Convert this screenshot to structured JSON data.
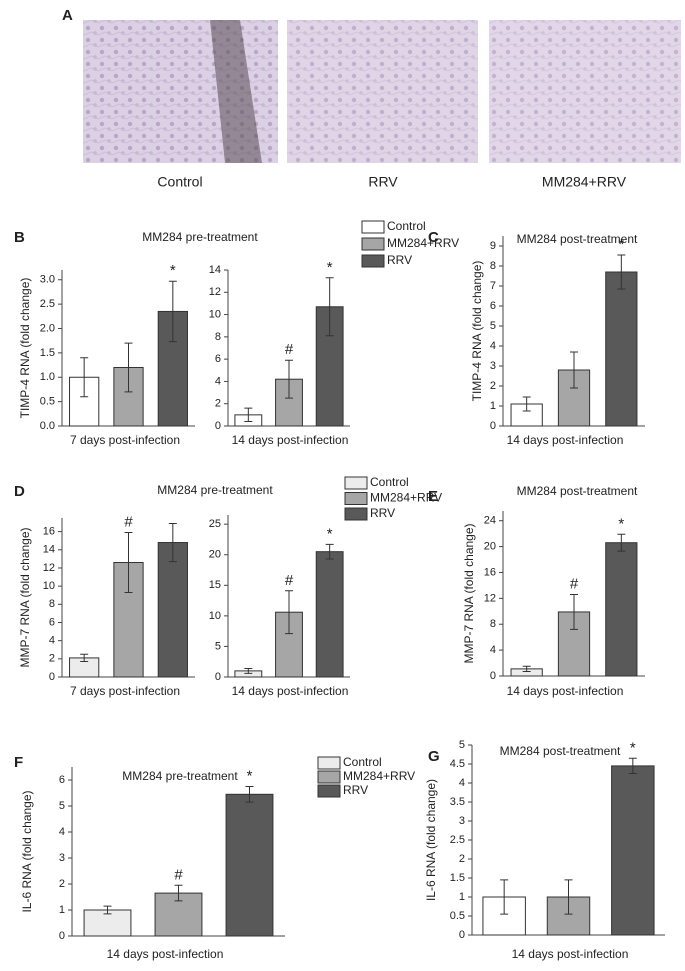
{
  "figure_a": {
    "panel": "A",
    "captions": [
      "Control",
      "RRV",
      "MM284+RRV"
    ]
  },
  "chart_data": [
    {
      "type": "bar",
      "panel": "B",
      "title": "MM284  pre-treatment",
      "ylabel": "TIMP-4 RNA (fold change)",
      "xlabel": "7 days post-infection",
      "ylim": [
        0,
        3.2
      ],
      "yticks": [
        {
          "value": 0,
          "label": "0.0"
        },
        0.5,
        {
          "value": 1,
          "label": "1.0"
        },
        1.5,
        {
          "value": 2,
          "label": "2.0"
        },
        2.5,
        {
          "value": 3,
          "label": "3.0"
        }
      ],
      "series": [
        {
          "color": "#ffffff",
          "values": [
            1.0
          ],
          "errors": [
            0.4
          ]
        },
        {
          "color": "#a6a6a6",
          "values": [
            1.2
          ],
          "errors": [
            0.5
          ]
        },
        {
          "color": "#595959",
          "values": [
            2.35
          ],
          "errors": [
            0.62
          ],
          "annotation": "*"
        }
      ]
    },
    {
      "type": "bar",
      "xlabel": "14 days post-infection",
      "ylim": [
        0,
        14
      ],
      "yticks": [
        0,
        2,
        4,
        6,
        8,
        10,
        12,
        14
      ],
      "legend": true,
      "series": [
        {
          "name": "Control",
          "color": "#ffffff",
          "values": [
            1.0
          ],
          "errors": [
            0.6
          ]
        },
        {
          "name": "MM284+RRV",
          "color": "#a6a6a6",
          "values": [
            4.2
          ],
          "errors": [
            1.7
          ],
          "annotation": "#"
        },
        {
          "name": "RRV",
          "color": "#595959",
          "values": [
            10.7
          ],
          "errors": [
            2.6
          ],
          "annotation": "*"
        }
      ]
    },
    {
      "type": "bar",
      "panel": "C",
      "title": "MM284  post-treatment",
      "ylabel": "TIMP-4 RNA (fold change)",
      "xlabel": "14 days post-infection",
      "ylim": [
        0,
        9.5
      ],
      "yticks": [
        0,
        1,
        2,
        3,
        4,
        5,
        6,
        7,
        8,
        9
      ],
      "series": [
        {
          "color": "#ffffff",
          "values": [
            1.1
          ],
          "errors": [
            0.35
          ]
        },
        {
          "color": "#a6a6a6",
          "values": [
            2.8
          ],
          "errors": [
            0.9
          ]
        },
        {
          "color": "#595959",
          "values": [
            7.7
          ],
          "errors": [
            0.85
          ],
          "annotation": "*"
        }
      ]
    },
    {
      "type": "bar",
      "panel": "D",
      "title": "MM284  pre-treatment",
      "ylabel": "MMP-7 RNA (fold change)",
      "xlabel": "7 days post-infection",
      "ylim": [
        0,
        17.5
      ],
      "yticks": [
        0,
        2,
        4,
        6,
        8,
        10,
        12,
        14,
        16
      ],
      "series": [
        {
          "color": "#ececec",
          "values": [
            2.1
          ],
          "errors": [
            0.4
          ]
        },
        {
          "color": "#a6a6a6",
          "values": [
            12.6
          ],
          "errors": [
            3.3
          ],
          "annotation": "#"
        },
        {
          "color": "#595959",
          "values": [
            14.8
          ],
          "errors": [
            2.1
          ]
        }
      ]
    },
    {
      "type": "bar",
      "xlabel": "14 days post-infection",
      "ylim": [
        0,
        26.5
      ],
      "yticks": [
        0,
        5,
        10,
        15,
        20,
        25
      ],
      "legend": true,
      "series": [
        {
          "name": "Control",
          "color": "#ececec",
          "values": [
            1.0
          ],
          "errors": [
            0.4
          ]
        },
        {
          "name": "MM284+RRV",
          "color": "#a6a6a6",
          "values": [
            10.6
          ],
          "errors": [
            3.5
          ],
          "annotation": "#"
        },
        {
          "name": "RRV",
          "color": "#595959",
          "values": [
            20.5
          ],
          "errors": [
            1.2
          ],
          "annotation": "*"
        }
      ]
    },
    {
      "type": "bar",
      "panel": "E",
      "title": "MM284  post-treatment",
      "ylabel": "MMP-7 RNA (fold change)",
      "xlabel": "14 days post-infection",
      "ylim": [
        0,
        25.5
      ],
      "yticks": [
        0,
        4,
        8,
        12,
        16,
        20,
        24
      ],
      "series": [
        {
          "color": "#ececec",
          "values": [
            1.1
          ],
          "errors": [
            0.4
          ]
        },
        {
          "color": "#a6a6a6",
          "values": [
            9.9
          ],
          "errors": [
            2.7
          ],
          "annotation": "#"
        },
        {
          "color": "#595959",
          "values": [
            20.6
          ],
          "errors": [
            1.3
          ],
          "annotation": "*"
        }
      ]
    },
    {
      "type": "bar",
      "panel": "F",
      "title": "MM284  pre-treatment",
      "ylabel": "IL-6 RNA (fold change)",
      "xlabel": "14 days post-infection",
      "ylim": [
        0,
        6.5
      ],
      "yticks": [
        0,
        1,
        2,
        3,
        4,
        5,
        6
      ],
      "legend": true,
      "series": [
        {
          "name": "Control",
          "color": "#ececec",
          "values": [
            1.0
          ],
          "errors": [
            0.15
          ]
        },
        {
          "name": "MM284+RRV",
          "color": "#a6a6a6",
          "values": [
            1.65
          ],
          "errors": [
            0.3
          ],
          "annotation": "#"
        },
        {
          "name": "RRV",
          "color": "#595959",
          "values": [
            5.45
          ],
          "errors": [
            0.3
          ],
          "annotation": "*"
        }
      ]
    },
    {
      "type": "bar",
      "panel": "G",
      "title": "MM284  post-treatment",
      "ylabel": "IL-6 RNA (fold change)",
      "xlabel": "14 days post-infection",
      "ylim": [
        0,
        5
      ],
      "yticks": [
        0,
        0.5,
        1,
        1.5,
        2,
        2.5,
        3,
        3.5,
        4,
        4.5,
        5
      ],
      "series": [
        {
          "color": "#ffffff",
          "values": [
            1.0
          ],
          "errors": [
            0.45
          ]
        },
        {
          "color": "#a6a6a6",
          "values": [
            1.0
          ],
          "errors": [
            0.45
          ]
        },
        {
          "color": "#595959",
          "values": [
            4.45
          ],
          "errors": [
            0.2
          ],
          "annotation": "*"
        }
      ]
    }
  ]
}
